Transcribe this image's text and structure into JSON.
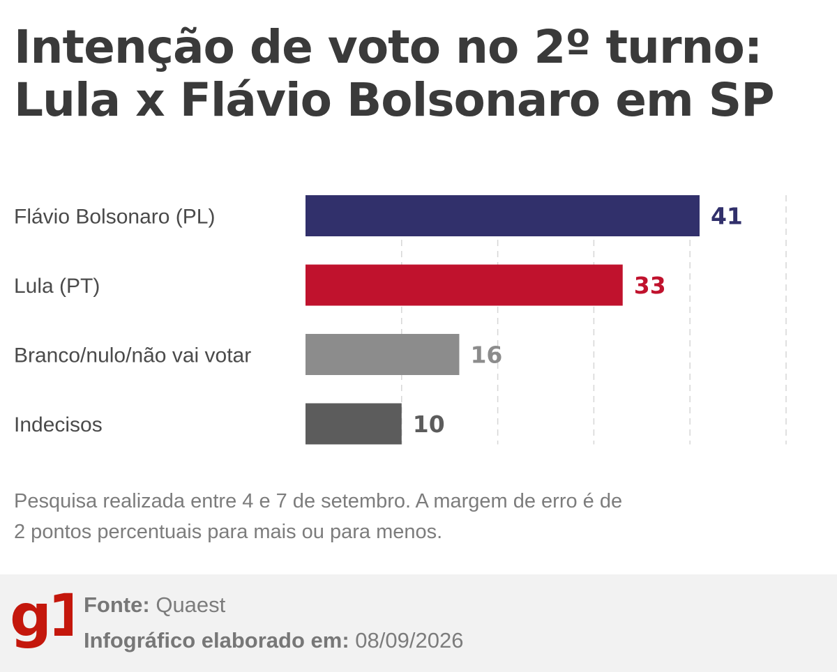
{
  "title_line1": "Intenção de voto no 2º turno:",
  "title_line2": "Lula x Flávio Bolsonaro em SP",
  "chart_data": {
    "type": "bar",
    "orientation": "horizontal",
    "categories": [
      "Flávio Bolsonaro (PL)",
      "Lula (PT)",
      "Branco/nulo/não vai votar",
      "Indecisos"
    ],
    "values": [
      41,
      33,
      16,
      10
    ],
    "value_labels": [
      "41",
      "33",
      "16",
      "10"
    ],
    "colors": [
      "#31306b",
      "#c0122d",
      "#8c8c8c",
      "#5c5c5c"
    ],
    "label_colors": [
      "#31306b",
      "#c0122d",
      "#8c8c8c",
      "#5c5c5c"
    ],
    "xlim": [
      0,
      50
    ],
    "gridlines": [
      0,
      10,
      20,
      30,
      40,
      50
    ],
    "grid": true,
    "grid_style": "dashed"
  },
  "note": "Pesquisa realizada entre 4 e 7 de setembro. A margem de erro é de 2 pontos percentuais para mais ou para menos.",
  "footer": {
    "logo_text": "g1",
    "source_label": "Fonte:",
    "source_value": "Quaest",
    "made_label": "Infográfico elaborado em:",
    "made_value": "08/09/2026",
    "logo_color": "#c4170c",
    "background": "#f2f2f2"
  }
}
